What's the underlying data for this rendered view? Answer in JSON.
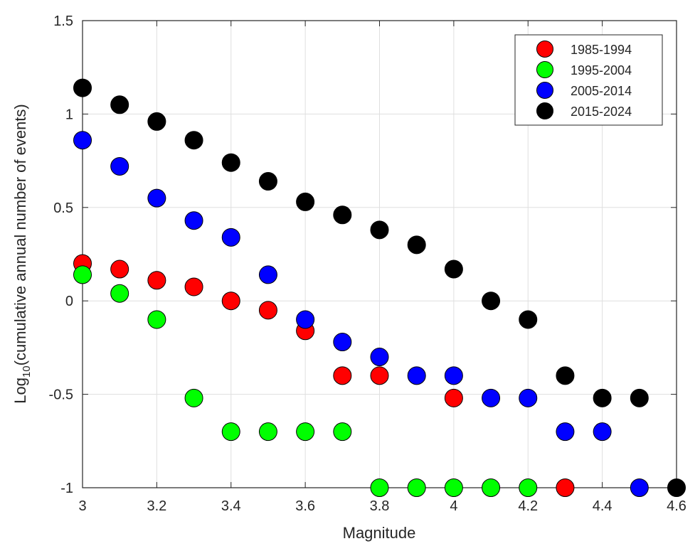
{
  "chart_data": {
    "type": "scatter",
    "xlabel": "Magnitude",
    "ylabel_base": "Log",
    "ylabel_sub": "10",
    "ylabel_rest": "(cumulative annual number of events)",
    "xlim": [
      3,
      4.6
    ],
    "ylim": [
      -1,
      1.5
    ],
    "xticks": [
      "3",
      "3.2",
      "3.4",
      "3.6",
      "3.8",
      "4",
      "4.2",
      "4.4",
      "4.6"
    ],
    "yticks": [
      "-1",
      "-0.5",
      "0",
      "0.5",
      "1",
      "1.5"
    ],
    "grid": true,
    "legend_position": "top-right",
    "series": [
      {
        "name": "1985-1994",
        "color": "#ff0000",
        "x": [
          3.0,
          3.1,
          3.2,
          3.3,
          3.4,
          3.5,
          3.6,
          3.7,
          3.8,
          4.0,
          4.3
        ],
        "y": [
          0.2,
          0.17,
          0.11,
          0.075,
          0.0,
          -0.05,
          -0.16,
          -0.4,
          -0.4,
          -0.52,
          -1.0
        ]
      },
      {
        "name": "1995-2004",
        "color": "#00ff00",
        "x": [
          3.0,
          3.1,
          3.2,
          3.3,
          3.4,
          3.5,
          3.6,
          3.7,
          3.8,
          3.9,
          4.0,
          4.1,
          4.2
        ],
        "y": [
          0.14,
          0.04,
          -0.1,
          -0.52,
          -0.7,
          -0.7,
          -0.7,
          -0.7,
          -1.0,
          -1.0,
          -1.0,
          -1.0,
          -1.0
        ]
      },
      {
        "name": "2005-2014",
        "color": "#0000ff",
        "x": [
          3.0,
          3.1,
          3.2,
          3.3,
          3.4,
          3.5,
          3.6,
          3.7,
          3.8,
          3.9,
          4.0,
          4.1,
          4.2,
          4.3,
          4.4,
          4.5
        ],
        "y": [
          0.86,
          0.72,
          0.55,
          0.43,
          0.34,
          0.14,
          -0.1,
          -0.22,
          -0.3,
          -0.4,
          -0.4,
          -0.52,
          -0.52,
          -0.7,
          -0.7,
          -1.0
        ]
      },
      {
        "name": "2015-2024",
        "color": "#000000",
        "x": [
          3.0,
          3.1,
          3.2,
          3.3,
          3.4,
          3.5,
          3.6,
          3.7,
          3.8,
          3.9,
          4.0,
          4.1,
          4.2,
          4.3,
          4.4,
          4.5,
          4.6
        ],
        "y": [
          1.14,
          1.05,
          0.96,
          0.86,
          0.74,
          0.64,
          0.53,
          0.46,
          0.38,
          0.3,
          0.17,
          0.0,
          -0.1,
          -0.4,
          -0.52,
          -0.52,
          -1.0
        ]
      }
    ]
  }
}
